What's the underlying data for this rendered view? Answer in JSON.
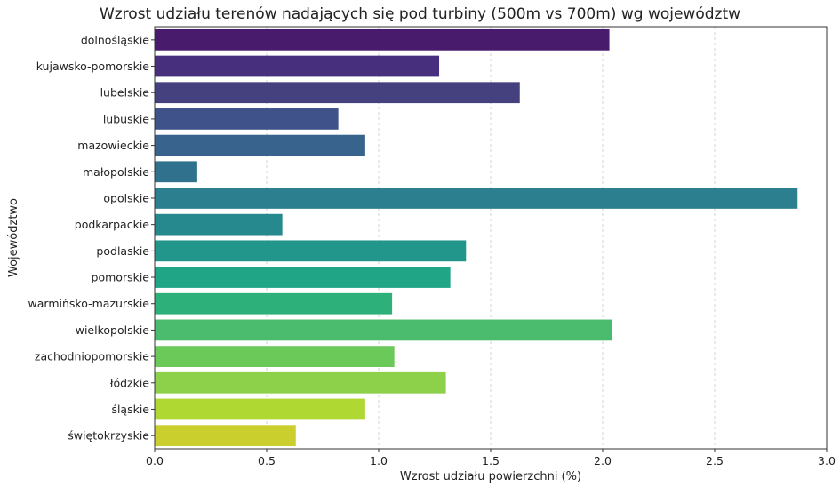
{
  "chart_data": {
    "type": "bar",
    "orientation": "horizontal",
    "title": "Wzrost udziału terenów nadających się pod turbiny (500m vs 700m) wg województw",
    "xlabel": "Wzrost udziału powierzchni (%)",
    "ylabel": "Województwo",
    "xlim": [
      0,
      3.0
    ],
    "xticks": [
      "0.0",
      "0.5",
      "1.0",
      "1.5",
      "2.0",
      "2.5",
      "3.0"
    ],
    "grid": "vertical-dashed",
    "categories": [
      "dolnośląskie",
      "kujawsko-pomorskie",
      "lubelskie",
      "lubuskie",
      "mazowieckie",
      "małopolskie",
      "opolskie",
      "podkarpackie",
      "podlaskie",
      "pomorskie",
      "warmińsko-mazurskie",
      "wielkopolskie",
      "zachodniopomorskie",
      "łódzkie",
      "śląskie",
      "świętokrzyskie"
    ],
    "values": [
      2.03,
      1.27,
      1.63,
      0.82,
      0.94,
      0.19,
      2.87,
      0.57,
      1.39,
      1.32,
      1.06,
      2.04,
      1.07,
      1.3,
      0.94,
      0.63
    ],
    "colors": [
      "#481b6d",
      "#472f7d",
      "#45417f",
      "#3f528a",
      "#38638d",
      "#30718e",
      "#2b7f8e",
      "#26898d",
      "#23968b",
      "#20a586",
      "#2eb07b",
      "#4bbc6e",
      "#6bc95a",
      "#8dd04a",
      "#b0d833",
      "#cbcf2e"
    ]
  }
}
